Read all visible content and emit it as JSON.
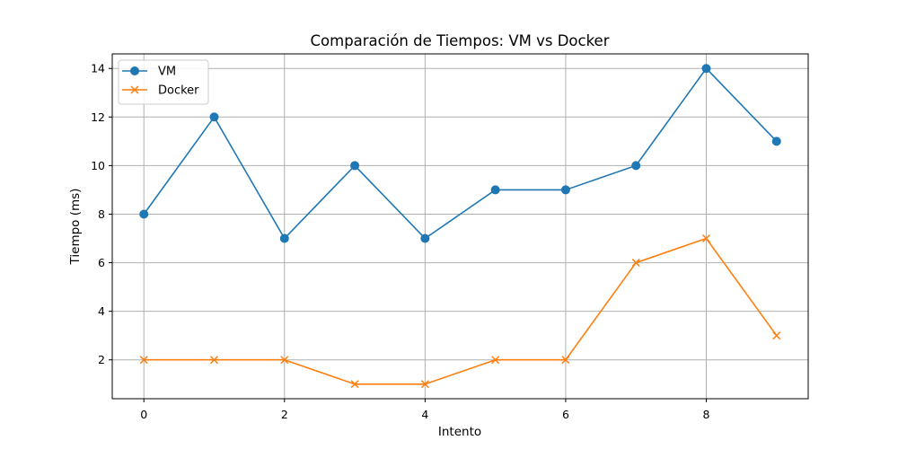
{
  "chart_data": {
    "type": "line",
    "title": "Comparación de Tiempos: VM vs Docker",
    "xlabel": "Intento",
    "ylabel": "Tiempo (ms)",
    "x": [
      0,
      1,
      2,
      3,
      4,
      5,
      6,
      7,
      8,
      9
    ],
    "xlim": [
      -0.45,
      9.45
    ],
    "ylim": [
      0.4,
      14.6
    ],
    "xticks": [
      0,
      2,
      4,
      6,
      8
    ],
    "yticks": [
      2,
      4,
      6,
      8,
      10,
      12,
      14
    ],
    "grid": true,
    "legend_position": "upper-left",
    "series": [
      {
        "name": "VM",
        "color": "#1f77b4",
        "marker": "circle",
        "values": [
          8,
          12,
          7,
          10,
          7,
          9,
          9,
          10,
          14,
          11
        ]
      },
      {
        "name": "Docker",
        "color": "#ff7f0e",
        "marker": "x",
        "values": [
          2,
          2,
          2,
          1,
          1,
          2,
          2,
          6,
          7,
          3
        ]
      }
    ]
  }
}
